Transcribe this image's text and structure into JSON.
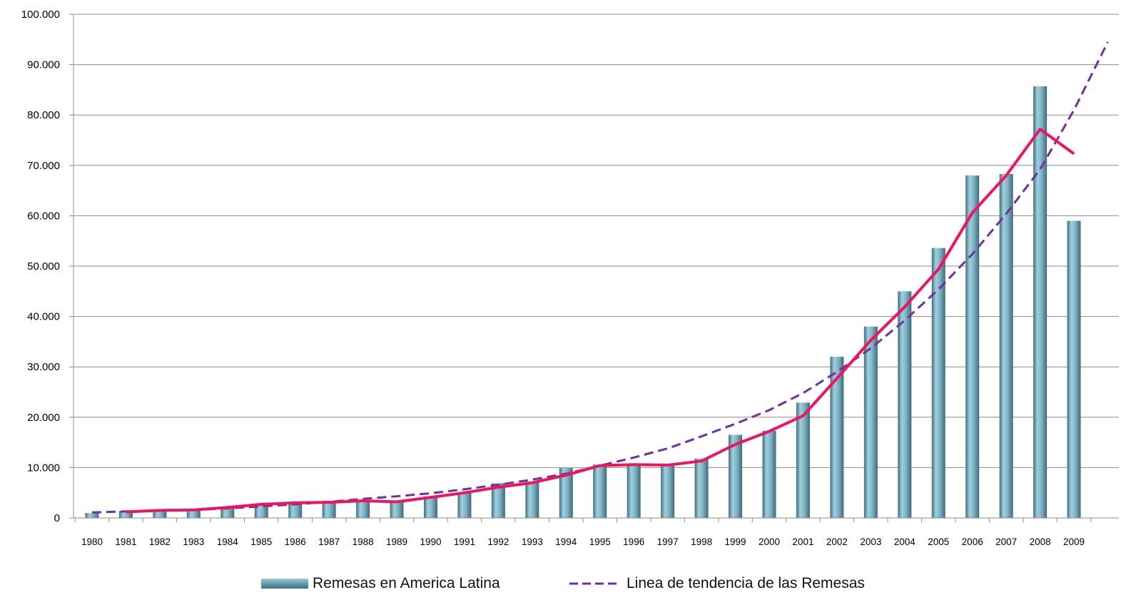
{
  "colors": {
    "bar": "#7fb3c4",
    "bar_dark": "#426f80",
    "line": "#f0135f",
    "trend": "#7030a0",
    "grid": "#8c8c8c"
  },
  "chart_data": {
    "type": "bar",
    "categories": [
      "1980",
      "1981",
      "1982",
      "1983",
      "1984",
      "1985",
      "1986",
      "1987",
      "1988",
      "1989",
      "1990",
      "1991",
      "1992",
      "1993",
      "1994",
      "1995",
      "1996",
      "1997",
      "1998",
      "1999",
      "2000",
      "2001",
      "2002",
      "2003",
      "2004",
      "2005",
      "2006",
      "2007",
      "2008",
      "2009"
    ],
    "series": [
      {
        "name": "Remesas en America Latina",
        "type": "bar",
        "values": [
          1000,
          1400,
          1700,
          1800,
          2200,
          2800,
          3100,
          3400,
          3600,
          3400,
          4300,
          5100,
          6900,
          7200,
          9900,
          10600,
          10500,
          10700,
          11800,
          16500,
          17300,
          22900,
          32000,
          38000,
          45000,
          53600,
          68000,
          68300,
          85700,
          59000
        ]
      },
      {
        "name": "",
        "type": "line",
        "values": [
          null,
          1200,
          1500,
          1600,
          2100,
          2700,
          3000,
          3100,
          3400,
          3200,
          4100,
          5000,
          6100,
          7000,
          8500,
          10400,
          10600,
          10500,
          11300,
          14600,
          17200,
          20300,
          27700,
          35300,
          41900,
          49400,
          60600,
          68000,
          77200,
          72300
        ]
      },
      {
        "name": "Linea de tendencia de las Remesas",
        "type": "trend",
        "x": [
          1980,
          1981,
          1982,
          1983,
          1984,
          1985,
          1986,
          1987,
          1988,
          1989,
          1990,
          1991,
          1992,
          1993,
          1994,
          1995,
          1996,
          1997,
          1998,
          1999,
          2000,
          2001,
          2002,
          2003,
          2004,
          2005,
          2006,
          2007,
          2008,
          2009,
          2010
        ],
        "values": [
          1100,
          1300,
          1450,
          1600,
          1900,
          2300,
          2700,
          3200,
          3800,
          4300,
          4900,
          5700,
          6600,
          7600,
          8800,
          10400,
          12000,
          13800,
          16200,
          18700,
          21400,
          24800,
          29000,
          33700,
          39200,
          45400,
          52400,
          60400,
          69200,
          81000,
          94500
        ]
      }
    ],
    "ylim": [
      0,
      100000
    ],
    "yticks": [
      "0",
      "10.000",
      "20.000",
      "30.000",
      "40.000",
      "50.000",
      "60.000",
      "70.000",
      "80.000",
      "90.000",
      "100.000"
    ],
    "ytick_values": [
      0,
      10000,
      20000,
      30000,
      40000,
      50000,
      60000,
      70000,
      80000,
      90000,
      100000
    ],
    "grid": true,
    "legend_position": "bottom"
  },
  "legend": {
    "bars_label": "Remesas en America Latina",
    "trend_label": "Linea de tendencia de las Remesas"
  }
}
